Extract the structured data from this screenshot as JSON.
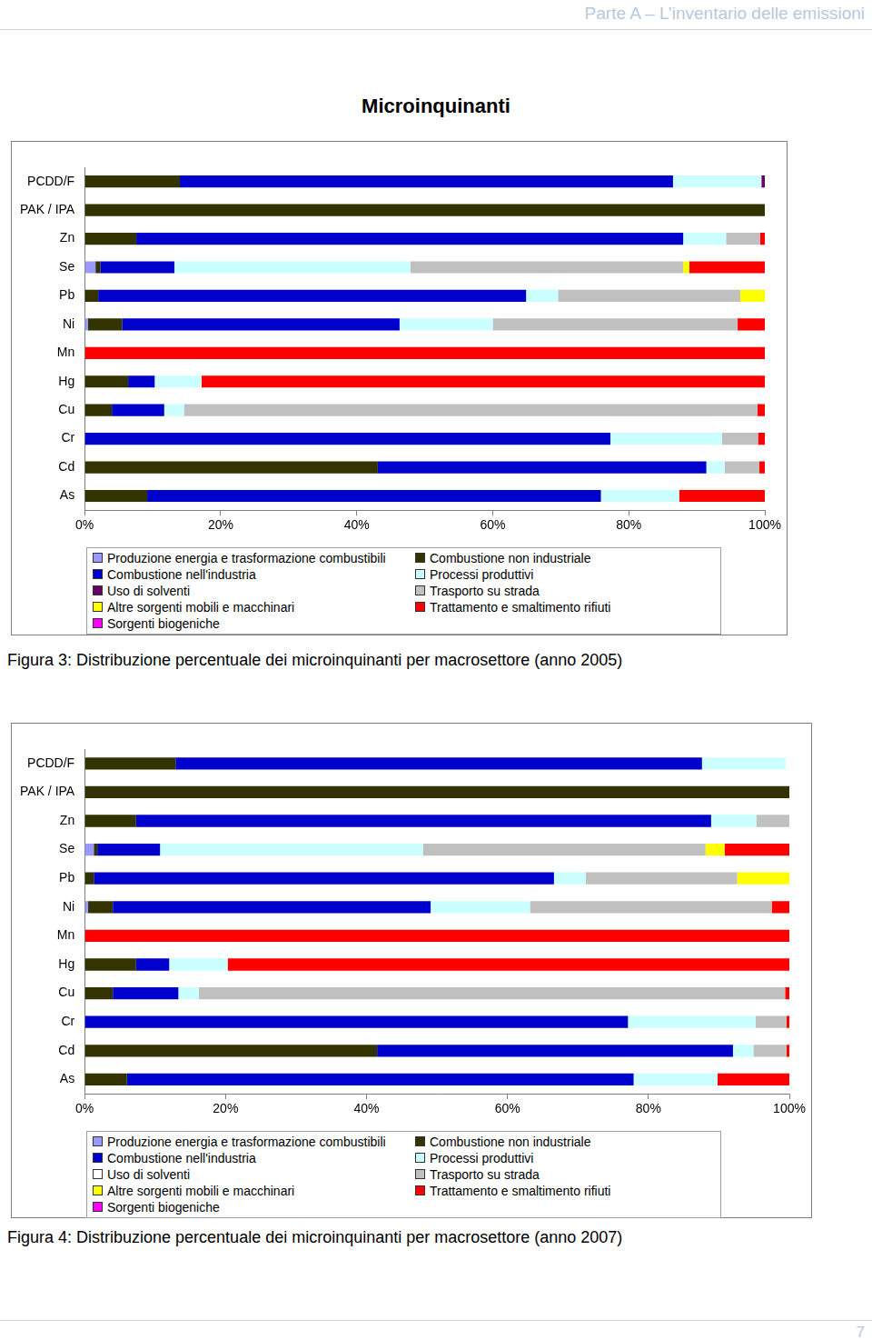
{
  "page": {
    "header": "Parte A – L’inventario delle emissioni",
    "title": "Microinquinanti",
    "captions": [
      "Figura 3: Distribuzione percentuale dei microinquinanti per macrosettore (anno 2005)",
      "Figura 4: Distribuzione percentuale dei microinquinanti per macrosettore (anno 2007)"
    ],
    "page_number": 7
  },
  "chart_data": [
    {
      "type": "bar",
      "orientation": "horizontal",
      "stacked": true,
      "grid": false,
      "legend": "bottom",
      "categories": [
        "PCDD/F",
        "PAK / IPA",
        "Zn",
        "Se",
        "Pb",
        "Ni",
        "Mn",
        "Hg",
        "Cu",
        "Cr",
        "Cd",
        "As"
      ],
      "xlim": [
        0,
        100
      ],
      "xticks": [
        {
          "value": 0,
          "label": "0%"
        },
        {
          "value": 20,
          "label": "20%"
        },
        {
          "value": 40,
          "label": "40%"
        },
        {
          "value": 60,
          "label": "60%"
        },
        {
          "value": 80,
          "label": "80%"
        },
        {
          "value": 100,
          "label": "100%"
        }
      ],
      "series": [
        {
          "name": "Produzione energia e trasformazione combustibili",
          "color": "#9999ff",
          "values": [
            0,
            0,
            0,
            1.6,
            0,
            0.5,
            0,
            0,
            0,
            0,
            0,
            0
          ]
        },
        {
          "name": "Combustione non industriale",
          "color": "#333300",
          "values": [
            14,
            100,
            7.6,
            0.7,
            2,
            5,
            0,
            6.4,
            4,
            0,
            43.1,
            9.2
          ]
        },
        {
          "name": "Combustione nell'industria",
          "color": "#0000cc",
          "values": [
            72.5,
            0,
            80.4,
            10.9,
            62.9,
            40.8,
            0,
            3.9,
            7.7,
            77.3,
            48.3,
            66.7
          ]
        },
        {
          "name": "Processi produttivi",
          "color": "#ccffff",
          "values": [
            13,
            0,
            6.3,
            34.7,
            4.7,
            13.7,
            0,
            6.9,
            2.9,
            16.4,
            2.7,
            11.5
          ]
        },
        {
          "name": "Uso di solventi",
          "color": "#660066",
          "values": [
            0.5,
            0,
            0,
            0,
            0,
            0,
            0,
            0,
            0,
            0,
            0,
            0
          ]
        },
        {
          "name": "Trasporto su strada",
          "color": "#c0c0c0",
          "values": [
            0,
            0,
            5,
            40.1,
            26.8,
            36,
            0,
            0,
            84.3,
            5.3,
            5.1,
            0
          ]
        },
        {
          "name": "Altre sorgenti mobili e macchinari",
          "color": "#ffff00",
          "values": [
            0,
            0,
            0,
            0.9,
            3.6,
            0,
            0,
            0,
            0,
            0,
            0,
            0
          ]
        },
        {
          "name": "Trattamento e smaltimento rifiuti",
          "color": "#ff0000",
          "values": [
            0,
            0,
            0.7,
            11.1,
            0,
            4,
            100,
            82.8,
            1.1,
            1,
            0.8,
            12.6
          ]
        },
        {
          "name": "Sorgenti biogeniche",
          "color": "#ff00ff",
          "values": [
            0,
            0,
            0,
            0,
            0,
            0,
            0,
            0,
            0,
            0,
            0,
            0
          ]
        }
      ]
    },
    {
      "type": "bar",
      "orientation": "horizontal",
      "stacked": true,
      "grid": false,
      "legend": "bottom",
      "categories": [
        "PCDD/F",
        "PAK / IPA",
        "Zn",
        "Se",
        "Pb",
        "Ni",
        "Mn",
        "Hg",
        "Cu",
        "Cr",
        "Cd",
        "As"
      ],
      "xlim": [
        0,
        100
      ],
      "xticks": [
        {
          "value": 0,
          "label": "0%"
        },
        {
          "value": 20,
          "label": "20%"
        },
        {
          "value": 40,
          "label": "40%"
        },
        {
          "value": 60,
          "label": "60%"
        },
        {
          "value": 80,
          "label": "80%"
        },
        {
          "value": 100,
          "label": "100%"
        }
      ],
      "series": [
        {
          "name": "Produzione energia e trasformazione combustibili",
          "color": "#9999ff",
          "values": [
            0,
            0,
            0,
            1.3,
            0,
            0.5,
            0,
            0,
            0,
            0,
            0,
            0
          ]
        },
        {
          "name": "Combustione non industriale",
          "color": "#333300",
          "values": [
            12.9,
            100,
            7.3,
            0.5,
            1.3,
            3.5,
            0,
            7.3,
            4,
            0,
            41.5,
            6
          ]
        },
        {
          "name": "Combustione nell'industria",
          "color": "#0000cc",
          "values": [
            74.7,
            0,
            81.6,
            8.9,
            65.3,
            45.1,
            0,
            4.7,
            9.3,
            77.1,
            50.5,
            71.9
          ]
        },
        {
          "name": "Processi produttivi",
          "color": "#ccffff",
          "values": [
            11.9,
            0,
            6.4,
            37.3,
            4.5,
            14.1,
            0,
            8.3,
            2.9,
            18.1,
            2.9,
            11.9
          ]
        },
        {
          "name": "Uso di solventi",
          "color": "#ffffff",
          "values": [
            0.5,
            0,
            0,
            0,
            0,
            0,
            0,
            0,
            0,
            0,
            0,
            0
          ]
        },
        {
          "name": "Trasporto su strada",
          "color": "#c0c0c0",
          "values": [
            0,
            0,
            4.7,
            40.1,
            21.5,
            34.3,
            0,
            0,
            83.2,
            4.4,
            4.7,
            0
          ]
        },
        {
          "name": "Altre sorgenti mobili e macchinari",
          "color": "#ffff00",
          "values": [
            0,
            0,
            0,
            2.7,
            7.4,
            0,
            0,
            0,
            0,
            0,
            0,
            0
          ]
        },
        {
          "name": "Trattamento e smaltimento rifiuti",
          "color": "#ff0000",
          "values": [
            0,
            0,
            0,
            9.2,
            0,
            2.5,
            100,
            79.7,
            0.6,
            0.4,
            0.4,
            10.2
          ]
        },
        {
          "name": "Sorgenti biogeniche",
          "color": "#ff00ff",
          "values": [
            0,
            0,
            0,
            0,
            0,
            0,
            0,
            0,
            0,
            0,
            0,
            0
          ]
        }
      ]
    }
  ]
}
